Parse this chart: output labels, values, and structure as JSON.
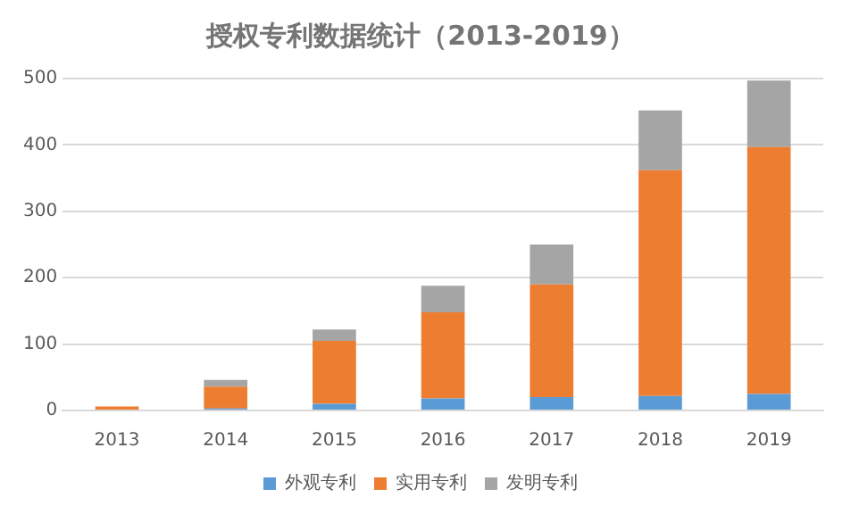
{
  "chart_data": {
    "type": "bar",
    "title": "授权专利数据统计（2013-2019）",
    "stacked": true,
    "categories": [
      "2013",
      "2014",
      "2015",
      "2016",
      "2017",
      "2018",
      "2019"
    ],
    "series": [
      {
        "name": "外观专利",
        "color": "#5b9bd5",
        "values": [
          null,
          3,
          10,
          18,
          20,
          22,
          25
        ]
      },
      {
        "name": "实用专利",
        "color": "#ed7d31",
        "values": [
          6,
          33,
          95,
          130,
          170,
          340,
          372
        ]
      },
      {
        "name": "发明专利",
        "color": "#a5a5a5",
        "values": [
          null,
          10,
          17,
          40,
          60,
          90,
          100
        ]
      }
    ],
    "ylim": [
      0,
      500
    ],
    "yticks": [
      0,
      100,
      200,
      300,
      400,
      500
    ],
    "grid": "y",
    "legend": "bottom"
  }
}
